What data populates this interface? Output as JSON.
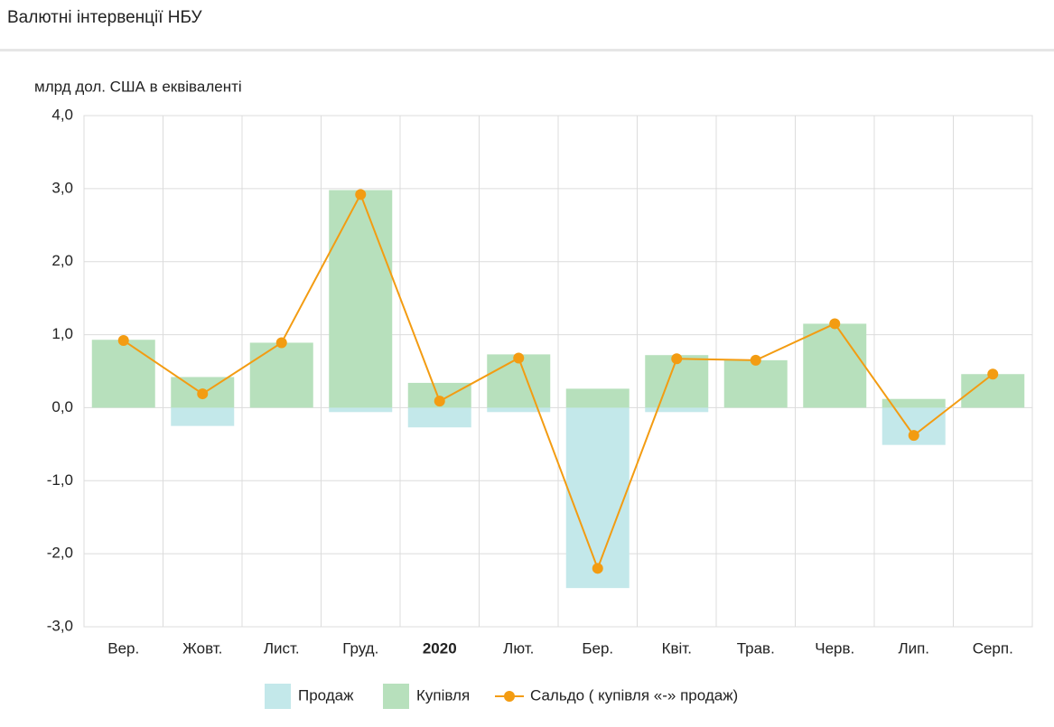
{
  "title": "Валютні інтервенції НБУ",
  "chart_data": {
    "type": "bar",
    "y_label": "млрд дол. США в еквіваленті",
    "categories": [
      "Вер.",
      "Жовт.",
      "Лист.",
      "Груд.",
      "2020",
      "Лют.",
      "Бер.",
      "Квіт.",
      "Трав.",
      "Черв.",
      "Лип.",
      "Серп."
    ],
    "bold_category": 4,
    "series": [
      {
        "name": "Продаж",
        "type": "bar",
        "color": "#c3e8ea",
        "values": [
          0,
          -0.25,
          0,
          -0.06,
          -0.27,
          -0.06,
          -2.47,
          -0.06,
          0,
          0,
          -0.51,
          0
        ]
      },
      {
        "name": "Купівля",
        "type": "bar",
        "color": "#b7e0bc",
        "values": [
          0.93,
          0.42,
          0.89,
          2.98,
          0.34,
          0.73,
          0.26,
          0.72,
          0.65,
          1.15,
          0.12,
          0.46
        ]
      },
      {
        "name": "Сальдо ( купівля «-» продаж)",
        "type": "line",
        "color": "#f39c12",
        "values": [
          0.92,
          0.19,
          0.89,
          2.92,
          0.09,
          0.68,
          -2.2,
          0.67,
          0.65,
          1.15,
          -0.38,
          0.46
        ]
      }
    ],
    "ylim": [
      -3,
      4
    ],
    "yticks": [
      {
        "value": -3,
        "label": "-3,0"
      },
      {
        "value": -2,
        "label": "-2,0"
      },
      {
        "value": -1,
        "label": "-1,0"
      },
      {
        "value": 0,
        "label": "0,0"
      },
      {
        "value": 1,
        "label": "1,0"
      },
      {
        "value": 2,
        "label": "2,0"
      },
      {
        "value": 3,
        "label": "3,0"
      },
      {
        "value": 4,
        "label": "4,0"
      }
    ],
    "grid": true
  }
}
